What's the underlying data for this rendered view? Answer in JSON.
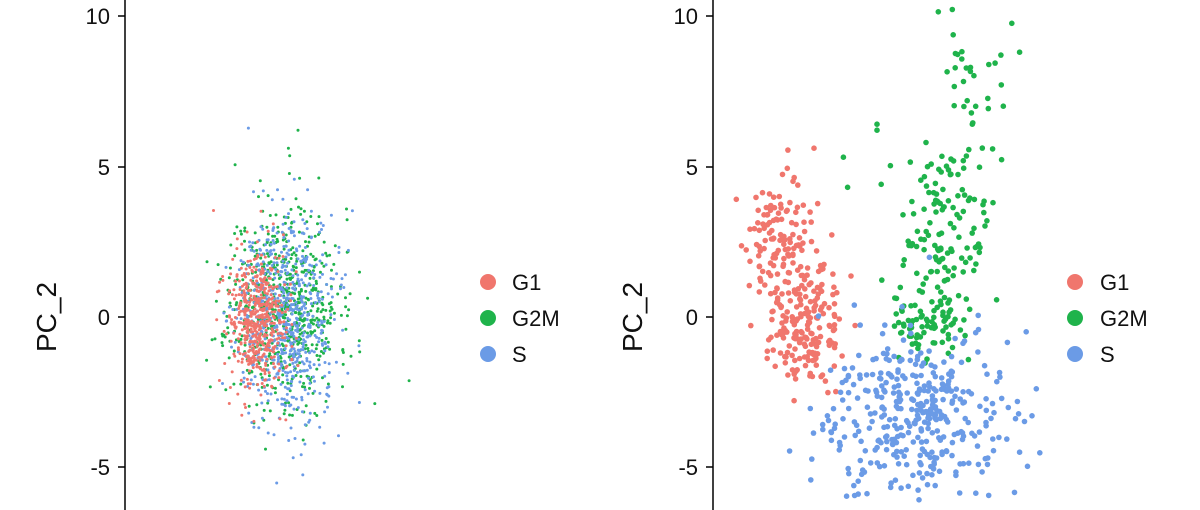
{
  "colors": {
    "G1": "#F0766D",
    "G2M": "#1FB34B",
    "S": "#6B9BE6",
    "axis": "#000000"
  },
  "chart_data": [
    {
      "type": "scatter",
      "ylabel": "PC_2",
      "xlabel": "",
      "ylim": [
        -6.0,
        11.0
      ],
      "y_ticks": [
        "-5",
        "0",
        "5",
        "10"
      ],
      "legend": [
        "G1",
        "G2M",
        "S"
      ],
      "legend_position": "right",
      "grid": false,
      "series": [
        {
          "name": "G1",
          "clusters": [
            {
              "cx": 0.0,
              "cy": -0.2,
              "sx": 0.9,
              "sy": 1.1,
              "n": 520
            }
          ]
        },
        {
          "name": "G2M",
          "clusters": [
            {
              "cx": 1.6,
              "cy": 0.4,
              "sx": 1.7,
              "sy": 1.6,
              "n": 700
            }
          ],
          "outliers": [
            [
              2.5,
              6.2
            ],
            [
              1.9,
              5.6
            ],
            [
              2.6,
              4.6
            ],
            [
              7.3,
              -2.9
            ]
          ]
        },
        {
          "name": "S",
          "clusters": [
            {
              "cx": 1.8,
              "cy": -0.1,
              "sx": 1.5,
              "sy": 1.7,
              "n": 650
            }
          ],
          "outliers": [
            [
              2.2,
              -4.7
            ],
            [
              2.7,
              -4.6
            ]
          ]
        }
      ]
    },
    {
      "type": "scatter",
      "ylabel": "PC_2",
      "xlabel": "",
      "ylim": [
        -6.0,
        11.0
      ],
      "y_ticks": [
        "-5",
        "0",
        "5",
        "10"
      ],
      "legend": [
        "G1",
        "G2M",
        "S"
      ],
      "legend_position": "right",
      "grid": false,
      "series": [
        {
          "name": "G1",
          "clusters": [
            {
              "cx": 2.2,
              "cy": 2.4,
              "sx": 0.8,
              "sy": 1.2,
              "n": 120
            },
            {
              "cx": 3.4,
              "cy": 0.4,
              "sx": 0.9,
              "sy": 1.1,
              "n": 110
            },
            {
              "cx": 3.6,
              "cy": -1.0,
              "sx": 0.8,
              "sy": 0.6,
              "n": 70
            }
          ],
          "outliers": [
            [
              0.3,
              3.9
            ],
            [
              4.0,
              5.6
            ],
            [
              3.0,
              4.5
            ]
          ]
        },
        {
          "name": "G2M",
          "clusters": [
            {
              "cx": 10.2,
              "cy": 2.6,
              "sx": 1.1,
              "sy": 1.8,
              "n": 150
            },
            {
              "cx": 9.6,
              "cy": -0.3,
              "sx": 1.0,
              "sy": 0.6,
              "n": 60
            },
            {
              "cx": 11.6,
              "cy": 8.1,
              "sx": 1.0,
              "sy": 1.3,
              "n": 30
            }
          ],
          "outliers": [
            [
              5.4,
              5.3
            ],
            [
              7.0,
              6.2
            ],
            [
              7.0,
              6.4
            ],
            [
              5.6,
              4.3
            ],
            [
              7.2,
              4.4
            ],
            [
              12.9,
              8.7
            ]
          ]
        },
        {
          "name": "S",
          "clusters": [
            {
              "cx": 8.8,
              "cy": -3.3,
              "sx": 2.2,
              "sy": 1.3,
              "n": 380
            }
          ],
          "outliers": [
            [
              9.0,
              -6.1
            ],
            [
              12.5,
              -2.9
            ]
          ]
        }
      ]
    }
  ]
}
